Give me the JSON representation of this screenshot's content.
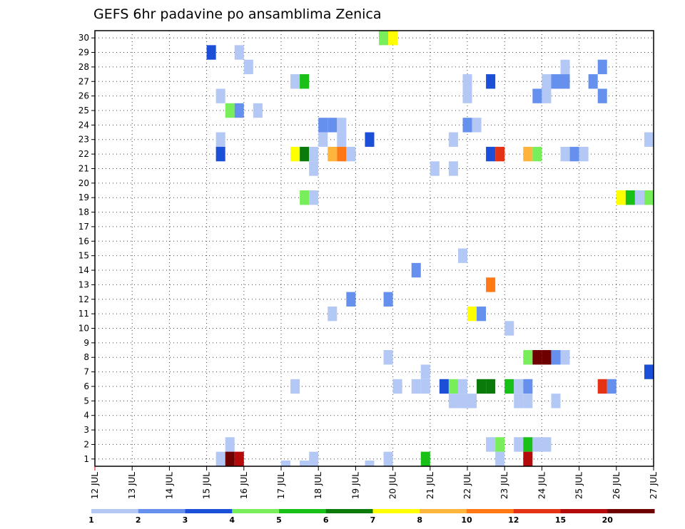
{
  "chart_data": {
    "type": "heatmap",
    "title": "GEFS 6hr padavine po ansamblima Zenica",
    "xlabel": "",
    "ylabel": "",
    "x_labels": [
      "12 JUL",
      "13 JUL",
      "14 JUL",
      "15 JUL",
      "16 JUL",
      "17 JUL",
      "18 JUL",
      "19 JUL",
      "20 JUL",
      "21 JUL",
      "22 JUL",
      "23 JUL",
      "24 JUL",
      "25 JUL",
      "26 JUL",
      "27 JUL"
    ],
    "y_labels": [
      "1",
      "2",
      "3",
      "4",
      "5",
      "6",
      "7",
      "8",
      "9",
      "10",
      "11",
      "12",
      "13",
      "14",
      "15",
      "16",
      "17",
      "18",
      "19",
      "20",
      "21",
      "22",
      "23",
      "24",
      "25",
      "26",
      "27",
      "28",
      "29",
      "30"
    ],
    "x_range_days": [
      12,
      27
    ],
    "y_range": [
      0,
      30
    ],
    "grid": true,
    "legend_placement": "bottom",
    "colorbar": {
      "labels": [
        "1",
        "2",
        "3",
        "4",
        "5",
        "6",
        "7",
        "8",
        "10",
        "12",
        "15",
        "20"
      ],
      "colors": [
        "#b4c8f5",
        "#6690ee",
        "#1c4fd8",
        "#78ee5a",
        "#18c018",
        "#0a7a0a",
        "#ffff00",
        "#ffb43c",
        "#ff7814",
        "#e63214",
        "#b40a0a",
        "#6e0000"
      ]
    },
    "cells": [
      [
        15.125,
        29,
        2
      ],
      [
        15.875,
        29,
        0
      ],
      [
        19.75,
        30,
        3
      ],
      [
        20.0,
        30,
        6
      ],
      [
        16.125,
        28,
        0
      ],
      [
        24.625,
        28,
        0
      ],
      [
        25.625,
        28,
        1
      ],
      [
        17.375,
        27,
        0
      ],
      [
        17.625,
        27,
        4
      ],
      [
        22.0,
        27,
        0
      ],
      [
        22.625,
        27,
        2
      ],
      [
        24.125,
        27,
        0
      ],
      [
        24.375,
        27,
        1
      ],
      [
        24.625,
        27,
        1
      ],
      [
        25.375,
        27,
        1
      ],
      [
        15.375,
        26,
        0
      ],
      [
        22.0,
        26,
        0
      ],
      [
        23.875,
        26,
        1
      ],
      [
        24.125,
        26,
        0
      ],
      [
        25.625,
        26,
        1
      ],
      [
        15.625,
        25,
        3
      ],
      [
        15.875,
        25,
        1
      ],
      [
        16.375,
        25,
        0
      ],
      [
        18.125,
        24,
        1
      ],
      [
        18.375,
        24,
        1
      ],
      [
        18.625,
        24,
        0
      ],
      [
        22.0,
        24,
        1
      ],
      [
        22.25,
        24,
        0
      ],
      [
        15.375,
        23,
        0
      ],
      [
        18.125,
        23,
        0
      ],
      [
        18.625,
        23,
        0
      ],
      [
        19.375,
        23,
        2
      ],
      [
        21.625,
        23,
        0
      ],
      [
        26.875,
        23,
        0
      ],
      [
        15.375,
        22,
        2
      ],
      [
        17.375,
        22,
        6
      ],
      [
        17.625,
        22,
        5
      ],
      [
        17.875,
        22,
        0
      ],
      [
        18.375,
        22,
        7
      ],
      [
        18.625,
        22,
        8
      ],
      [
        18.875,
        22,
        0
      ],
      [
        22.625,
        22,
        2
      ],
      [
        22.875,
        22,
        9
      ],
      [
        23.625,
        22,
        7
      ],
      [
        23.875,
        22,
        3
      ],
      [
        24.625,
        22,
        0
      ],
      [
        24.875,
        22,
        1
      ],
      [
        25.125,
        22,
        0
      ],
      [
        17.875,
        21,
        0
      ],
      [
        21.125,
        21,
        0
      ],
      [
        21.625,
        21,
        0
      ],
      [
        17.625,
        19,
        3
      ],
      [
        17.875,
        19,
        0
      ],
      [
        26.125,
        19,
        6
      ],
      [
        26.375,
        19,
        4
      ],
      [
        26.625,
        19,
        0
      ],
      [
        26.875,
        19,
        3
      ],
      [
        21.875,
        15,
        0
      ],
      [
        20.625,
        14,
        1
      ],
      [
        22.625,
        13,
        8
      ],
      [
        18.875,
        12,
        1
      ],
      [
        19.875,
        12,
        1
      ],
      [
        18.375,
        11,
        0
      ],
      [
        22.125,
        11,
        6
      ],
      [
        22.375,
        11,
        1
      ],
      [
        23.125,
        10,
        0
      ],
      [
        19.875,
        8,
        0
      ],
      [
        23.625,
        8,
        3
      ],
      [
        23.875,
        8,
        11
      ],
      [
        24.125,
        8,
        11
      ],
      [
        24.375,
        8,
        1
      ],
      [
        24.625,
        8,
        0
      ],
      [
        20.875,
        7,
        0
      ],
      [
        26.875,
        7,
        2
      ],
      [
        17.375,
        6,
        0
      ],
      [
        20.125,
        6,
        0
      ],
      [
        20.625,
        6,
        0
      ],
      [
        20.875,
        6,
        0
      ],
      [
        21.375,
        6,
        2
      ],
      [
        21.625,
        6,
        3
      ],
      [
        21.875,
        6,
        0
      ],
      [
        22.375,
        6,
        5
      ],
      [
        22.625,
        6,
        5
      ],
      [
        23.125,
        6,
        4
      ],
      [
        23.375,
        6,
        0
      ],
      [
        23.625,
        6,
        1
      ],
      [
        25.625,
        6,
        9
      ],
      [
        25.875,
        6,
        1
      ],
      [
        21.625,
        5,
        0
      ],
      [
        21.875,
        5,
        0
      ],
      [
        22.125,
        5,
        0
      ],
      [
        23.375,
        5,
        0
      ],
      [
        23.625,
        5,
        0
      ],
      [
        24.375,
        5,
        0
      ],
      [
        15.625,
        2,
        0
      ],
      [
        22.625,
        2,
        0
      ],
      [
        22.875,
        2,
        3
      ],
      [
        23.375,
        2,
        0
      ],
      [
        23.625,
        2,
        4
      ],
      [
        23.875,
        2,
        0
      ],
      [
        24.125,
        2,
        0
      ],
      [
        15.375,
        1,
        0
      ],
      [
        15.625,
        1,
        11
      ],
      [
        15.875,
        1,
        10
      ],
      [
        17.875,
        1,
        0
      ],
      [
        19.875,
        1,
        0
      ],
      [
        20.875,
        1,
        4
      ],
      [
        22.875,
        1,
        0
      ],
      [
        23.625,
        1,
        10
      ],
      [
        17.125,
        0,
        0
      ],
      [
        17.625,
        0,
        0
      ],
      [
        19.375,
        0,
        0
      ]
    ]
  }
}
